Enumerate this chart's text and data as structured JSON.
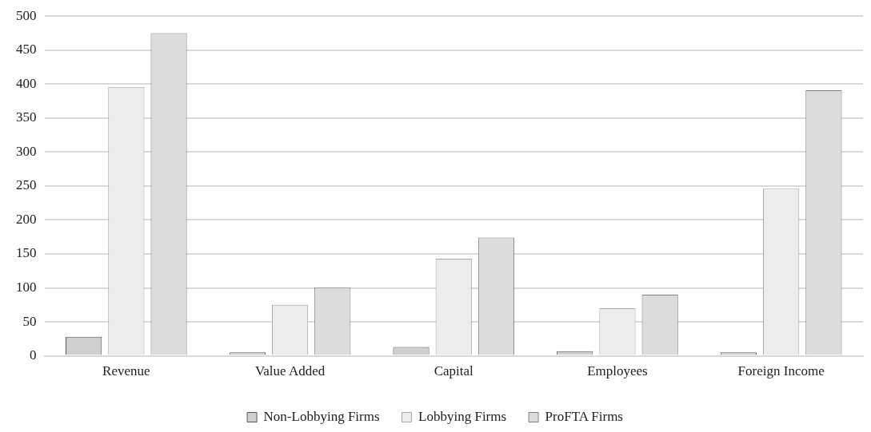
{
  "chart_data": {
    "type": "bar",
    "categories": [
      "Revenue",
      "Value Added",
      "Capital",
      "Employees",
      "Foreign Income"
    ],
    "series": [
      {
        "name": "Non-Lobbying Firms",
        "color": "#cfcfcf",
        "values": [
          28,
          5,
          13,
          7,
          5
        ]
      },
      {
        "name": "Lobbying Firms",
        "color": "#ececec",
        "values": [
          396,
          75,
          143,
          70,
          246
        ]
      },
      {
        "name": "ProFTA Firms",
        "color": "#dcdcdc",
        "values": [
          475,
          101,
          174,
          90,
          391
        ]
      }
    ],
    "ylim": [
      0,
      500
    ],
    "yticks": [
      0,
      50,
      100,
      150,
      200,
      250,
      300,
      350,
      400,
      450,
      500
    ],
    "grid": "y",
    "legend": "bottom"
  }
}
